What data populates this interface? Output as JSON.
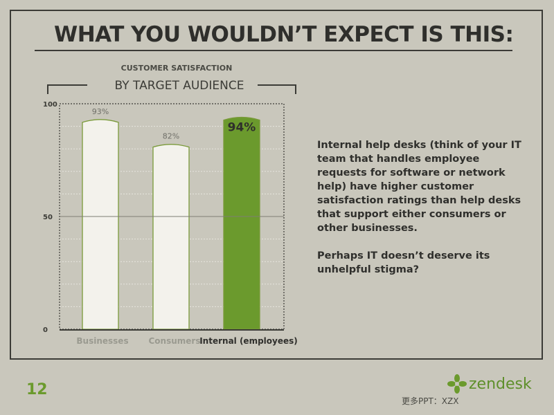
{
  "slide": {
    "title": "WHAT YOU WOULDN’T EXPECT IS THIS:",
    "subtitle_top": "CUSTOMER SATISFACTION",
    "subtitle_main": "BY TARGET AUDIENCE",
    "body_paragraphs": [
      "Internal help desks (think of your IT team that handles employee requests for software or network help) have higher customer satisfaction ratings than help desks that support either consumers or other businesses.",
      "Perhaps IT doesn’t deserve its unhelpful stigma?"
    ],
    "page_number": "12",
    "logo_text": "zendesk",
    "logo_icon": "zendesk-leaf-icon",
    "footer_note": "更多PPT：XZX"
  },
  "colors": {
    "background": "#c9c7bc",
    "accent_green": "#6b9a2d",
    "bar_fill": "#f3f2ec",
    "bar_highlight": "#6b9a2d",
    "text_dark": "#2f2f2c"
  },
  "chart_data": {
    "type": "bar",
    "title": "CUSTOMER SATISFACTION BY TARGET AUDIENCE",
    "categories": [
      "Businesses",
      "Consumers",
      "Internal (employees)"
    ],
    "values": [
      93,
      82,
      94
    ],
    "data_labels": [
      "93%",
      "82%",
      "94%"
    ],
    "highlight_index": 2,
    "ylim": [
      0,
      100
    ],
    "yticks": [
      0,
      50,
      100
    ],
    "xlabel": "",
    "ylabel": "",
    "grid": true
  }
}
